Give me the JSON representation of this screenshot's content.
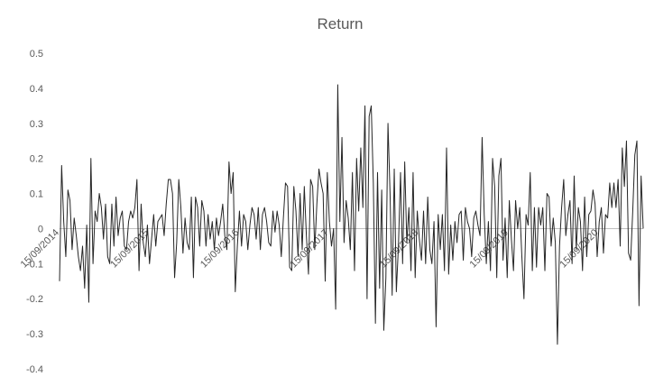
{
  "chart_data": {
    "type": "line",
    "title": "Return",
    "xlabel": "",
    "ylabel": "",
    "ylim": [
      -0.4,
      0.5
    ],
    "yticks": [
      0.5,
      0.4,
      0.3,
      0.2,
      0.1,
      0,
      -0.1,
      -0.2,
      -0.3,
      -0.4
    ],
    "grid": false,
    "legend": "none",
    "x_tick_labels": [
      "15/09/2014",
      "15/09/2015",
      "15/09/2016",
      "15/09/2017",
      "15/09/2018",
      "15/09/2019",
      "15/09/2020"
    ],
    "x_range": [
      "2014-09-15",
      "2021-03-15"
    ],
    "series": [
      {
        "color": "#262626",
        "values": [
          -0.15,
          0.18,
          0.02,
          -0.08,
          0.11,
          0.08,
          -0.06,
          0.03,
          -0.02,
          -0.08,
          -0.12,
          -0.05,
          -0.17,
          0.01,
          -0.21,
          0.2,
          -0.1,
          0.05,
          0.02,
          0.1,
          0.06,
          -0.03,
          0.07,
          -0.08,
          -0.1,
          0.07,
          -0.05,
          0.09,
          -0.02,
          0.03,
          0.05,
          -0.05,
          -0.06,
          0.02,
          0.05,
          0.03,
          0.06,
          0.14,
          -0.12,
          0.07,
          -0.04,
          -0.08,
          0.01,
          -0.1,
          -0.03,
          0.04,
          -0.05,
          0.02,
          0.03,
          0.04,
          -0.02,
          0.07,
          0.14,
          0.14,
          0.1,
          -0.14,
          -0.04,
          0.14,
          0.06,
          -0.07,
          0.03,
          -0.04,
          -0.06,
          0.09,
          -0.14,
          0.09,
          0.06,
          -0.05,
          0.08,
          0.05,
          -0.05,
          0.04,
          -0.03,
          0.02,
          -0.06,
          0.03,
          -0.02,
          0.02,
          0.07,
          -0.02,
          -0.06,
          0.19,
          0.1,
          0.16,
          -0.18,
          -0.05,
          0.05,
          -0.05,
          0.04,
          0.02,
          -0.06,
          0.01,
          0.06,
          0.04,
          -0.03,
          0.06,
          -0.06,
          0.04,
          0.06,
          0.02,
          -0.04,
          -0.05,
          0.05,
          -0.01,
          0.05,
          0.01,
          -0.08,
          0.03,
          0.13,
          0.12,
          -0.11,
          -0.12,
          0.12,
          0.05,
          -0.08,
          0.1,
          -0.06,
          0.12,
          -0.02,
          -0.13,
          0.14,
          0.12,
          -0.06,
          0.07,
          0.17,
          0.13,
          0.1,
          -0.15,
          0.16,
          0.02,
          -0.05,
          0.0,
          -0.23,
          0.41,
          0.02,
          0.26,
          -0.04,
          0.08,
          0.03,
          -0.06,
          0.16,
          -0.12,
          0.2,
          0.05,
          0.23,
          0.06,
          0.35,
          -0.2,
          0.32,
          0.35,
          0.13,
          -0.27,
          0.16,
          -0.17,
          0.11,
          -0.29,
          -0.14,
          0.3,
          0.1,
          -0.19,
          0.17,
          -0.18,
          -0.05,
          0.16,
          -0.1,
          0.19,
          -0.04,
          0.06,
          -0.12,
          0.16,
          -0.14,
          0.05,
          -0.03,
          -0.09,
          0.05,
          -0.1,
          0.09,
          -0.06,
          -0.1,
          0.02,
          -0.28,
          0.04,
          -0.06,
          0.04,
          -0.12,
          0.23,
          -0.13,
          0.01,
          -0.09,
          0.02,
          -0.04,
          0.04,
          0.05,
          -0.09,
          0.06,
          0.02,
          0.0,
          -0.08,
          0.03,
          0.05,
          0.01,
          -0.02,
          0.26,
          0.04,
          -0.1,
          0.02,
          -0.12,
          0.2,
          0.12,
          -0.14,
          0.15,
          0.2,
          -0.09,
          0.03,
          -0.14,
          0.08,
          -0.03,
          -0.12,
          0.08,
          0.0,
          0.06,
          -0.08,
          -0.2,
          0.04,
          0.01,
          0.16,
          -0.12,
          0.06,
          -0.11,
          0.06,
          0.01,
          0.06,
          -0.12,
          0.1,
          0.09,
          -0.05,
          0.03,
          -0.04,
          -0.33,
          -0.05,
          0.06,
          0.14,
          -0.02,
          0.04,
          0.08,
          -0.1,
          0.15,
          -0.06,
          0.06,
          0.02,
          -0.12,
          0.09,
          -0.08,
          0.04,
          0.05,
          0.11,
          0.07,
          -0.08,
          0.02,
          0.06,
          -0.07,
          0.04,
          0.03,
          0.13,
          0.06,
          0.13,
          0.06,
          0.14,
          -0.05,
          0.23,
          0.12,
          0.25,
          -0.07,
          -0.09,
          0.05,
          0.21,
          0.25,
          -0.22,
          0.15,
          0.0
        ]
      }
    ]
  }
}
